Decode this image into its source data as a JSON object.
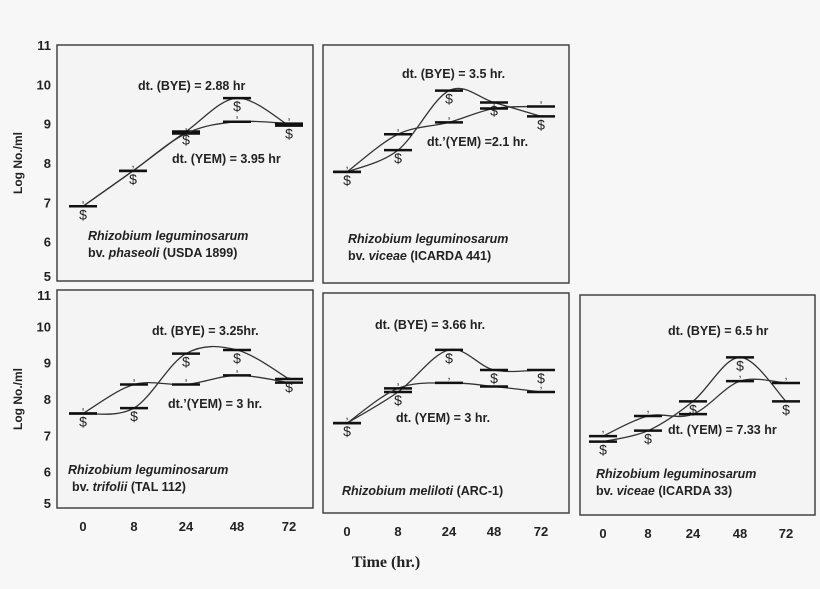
{
  "chart_data": [
    {
      "type": "line",
      "ylabel": "Log No./ml",
      "ylim": [
        5,
        11
      ],
      "yticks": [
        "5",
        "6",
        "7",
        "8",
        "9",
        "10",
        "11"
      ],
      "categories": [
        "0",
        "8",
        "24",
        "48",
        "72"
      ],
      "show_xticks": false,
      "organism": {
        "genus": "Rhizobium leguminosarum",
        "bv": "bv.",
        "variety": "phaseoli",
        "strain": "(USDA 1899)"
      },
      "annotations": {
        "bye": "dt. (BYE) = 2.88 hr",
        "yem": "dt. (YEM) = 3.95 hr"
      },
      "series": [
        {
          "name": "BYE",
          "marker": "$",
          "values": [
            6.9,
            7.8,
            8.8,
            9.65,
            8.95
          ]
        },
        {
          "name": "YEM",
          "marker": ",",
          "values": [
            6.9,
            7.8,
            8.75,
            9.05,
            9.0
          ]
        }
      ]
    },
    {
      "type": "line",
      "ylim": [
        5,
        11
      ],
      "categories": [
        "0",
        "8",
        "24",
        "48",
        "72"
      ],
      "show_xticks": false,
      "organism": {
        "genus": "Rhizobium leguminosarum",
        "bv": "bv.",
        "variety": "viceae",
        "strain": "(ICARDA 441)"
      },
      "annotations": {
        "bye": "dt. (BYE) = 3.5 hr.",
        "yem": "dt.’(YEM) =2.1 hr."
      },
      "series": [
        {
          "name": "BYE",
          "marker": "$",
          "values": [
            7.8,
            8.35,
            9.85,
            9.55,
            9.2
          ]
        },
        {
          "name": "YEM",
          "marker": ",",
          "values": [
            7.8,
            8.75,
            9.05,
            9.4,
            9.45
          ]
        }
      ]
    },
    {
      "type": "line",
      "ylabel": "Log No./ml",
      "ylim": [
        5,
        11
      ],
      "yticks": [
        "5",
        "6",
        "7",
        "8",
        "9",
        "10",
        "11"
      ],
      "categories": [
        "0",
        "8",
        "24",
        "48",
        "72"
      ],
      "show_xticks": true,
      "organism": {
        "genus": "Rhizobium  leguminosarum",
        "bv": "bv.",
        "variety": "trifolii",
        "strain": "(TAL 112)"
      },
      "annotations": {
        "bye": "dt. (BYE) = 3.25hr.",
        "yem": "dt.’(YEM) = 3 hr."
      },
      "series": [
        {
          "name": "BYE",
          "marker": "$",
          "values": [
            7.6,
            7.75,
            9.25,
            9.35,
            8.55
          ]
        },
        {
          "name": "YEM",
          "marker": ",",
          "values": [
            7.6,
            8.4,
            8.4,
            8.65,
            8.45
          ]
        }
      ]
    },
    {
      "type": "line",
      "ylim": [
        5,
        11
      ],
      "categories": [
        "0",
        "8",
        "24",
        "48",
        "72"
      ],
      "show_xticks": true,
      "organism": {
        "genus": "Rhizobium meliloti",
        "bv": "",
        "variety": "",
        "strain": "(ARC-1)"
      },
      "annotations": {
        "bye": "dt. (BYE) = 3.66 hr.",
        "yem": "dt. (YEM) = 3 hr."
      },
      "series": [
        {
          "name": "BYE",
          "marker": "$",
          "values": [
            7.45,
            8.3,
            9.45,
            8.9,
            8.9
          ]
        },
        {
          "name": "YEM",
          "marker": ",",
          "values": [
            7.45,
            8.4,
            8.55,
            8.45,
            8.3
          ]
        }
      ]
    },
    {
      "type": "line",
      "ylim": [
        5,
        11
      ],
      "categories": [
        "0",
        "8",
        "24",
        "48",
        "72"
      ],
      "show_xticks": true,
      "organism": {
        "genus": "Rhizobium leguminosarum",
        "bv": "bv.",
        "variety": "viceae",
        "strain": "(ICARDA 33)"
      },
      "annotations": {
        "bye": "dt. (BYE) = 6.5 hr",
        "yem": "dt. (YEM) = 7.33 hr"
      },
      "series": [
        {
          "name": "BYE",
          "marker": "$",
          "values": [
            7.0,
            7.3,
            8.1,
            9.3,
            8.1
          ]
        },
        {
          "name": "YEM",
          "marker": ",",
          "values": [
            7.15,
            7.7,
            7.75,
            8.65,
            8.6
          ]
        }
      ]
    }
  ],
  "xlabel": "Time (hr.)",
  "colors": {
    "line": "#333333",
    "frame": "#444444",
    "background": "#f4f4f4"
  }
}
